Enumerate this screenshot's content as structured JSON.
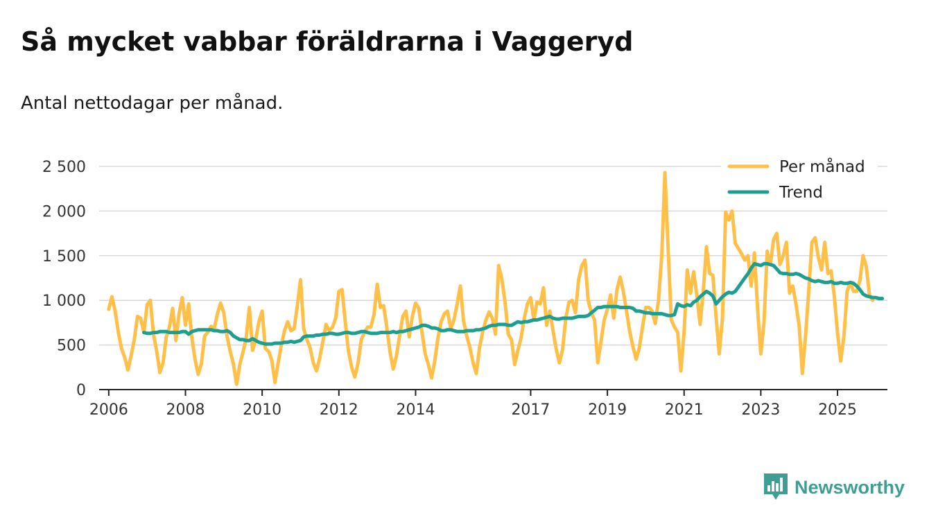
{
  "title": "Så mycket vabbar föräldrarna i Vaggeryd",
  "subtitle": "Antal nettodagar per månad.",
  "brand": {
    "name": "Newsworthy",
    "color": "#3f9e94",
    "icon": "newsworthy-logo-icon"
  },
  "chart_data": {
    "type": "line",
    "title": "Så mycket vabbar föräldrarna i Vaggeryd",
    "subtitle": "Antal nettodagar per månad.",
    "xlabel": "",
    "ylabel": "",
    "xlim": [
      2005.75,
      2026.3
    ],
    "ylim": [
      0,
      2500
    ],
    "yticks": [
      0,
      500,
      1000,
      1500,
      2000,
      2500
    ],
    "ytick_labels": [
      "0",
      "500",
      "1 000",
      "1 500",
      "2 000",
      "2 500"
    ],
    "xticks": [
      2006,
      2008,
      2010,
      2012,
      2014,
      2017,
      2019,
      2021,
      2023,
      2025
    ],
    "xtick_labels": [
      "2006",
      "2008",
      "2010",
      "2012",
      "2014",
      "2017",
      "2019",
      "2021",
      "2023",
      "2025"
    ],
    "grid": true,
    "legend": "top-right",
    "x_start": 2006,
    "x_step": 0.08333,
    "series": [
      {
        "name": "Per månad",
        "color": "#ffc04a",
        "start": 2006.0,
        "values": [
          900,
          1040,
          880,
          640,
          460,
          360,
          220,
          380,
          560,
          820,
          800,
          640,
          950,
          1000,
          620,
          430,
          190,
          300,
          590,
          700,
          910,
          550,
          850,
          1030,
          720,
          960,
          580,
          340,
          170,
          290,
          600,
          640,
          710,
          680,
          850,
          970,
          860,
          600,
          430,
          290,
          60,
          280,
          420,
          580,
          920,
          440,
          560,
          760,
          880,
          460,
          430,
          330,
          80,
          300,
          500,
          660,
          760,
          660,
          680,
          940,
          1230,
          680,
          560,
          470,
          300,
          210,
          350,
          540,
          730,
          660,
          700,
          800,
          1100,
          1120,
          760,
          430,
          250,
          140,
          300,
          560,
          640,
          700,
          700,
          840,
          1180,
          920,
          940,
          700,
          420,
          230,
          380,
          600,
          820,
          880,
          590,
          820,
          970,
          910,
          640,
          400,
          280,
          130,
          320,
          580,
          760,
          850,
          880,
          680,
          780,
          960,
          1160,
          770,
          600,
          470,
          300,
          180,
          470,
          650,
          780,
          870,
          800,
          620,
          1390,
          1240,
          980,
          620,
          560,
          280,
          440,
          580,
          800,
          960,
          1030,
          780,
          980,
          960,
          1140,
          720,
          880,
          660,
          450,
          300,
          450,
          800,
          980,
          1000,
          860,
          1230,
          1390,
          1450,
          1000,
          860,
          780,
          300,
          540,
          780,
          900,
          1060,
          800,
          1120,
          1260,
          1100,
          880,
          650,
          480,
          340,
          470,
          700,
          920,
          920,
          880,
          740,
          1000,
          1500,
          2430,
          1580,
          780,
          700,
          640,
          210,
          640,
          1340,
          1080,
          1320,
          1050,
          730,
          1100,
          1600,
          1300,
          1280,
          820,
          400,
          800,
          1990,
          1900,
          2000,
          1640,
          1580,
          1520,
          1450,
          1500,
          1160,
          1530,
          900,
          400,
          750,
          1550,
          1400,
          1680,
          1750,
          1400,
          1500,
          1650,
          1080,
          1160,
          960,
          720,
          180,
          600,
          1100,
          1650,
          1700,
          1480,
          1340,
          1650,
          1300,
          1330,
          1050,
          640,
          320,
          600,
          1100,
          1200,
          1100,
          1100,
          1220,
          1500,
          1380,
          1060,
          1000
        ]
      },
      {
        "name": "Trend",
        "color": "#1f9e8f",
        "start": 2006.917,
        "values": [
          640,
          630,
          630,
          640,
          640,
          650,
          650,
          650,
          640,
          640,
          640,
          640,
          650,
          650,
          620,
          650,
          660,
          670,
          670,
          670,
          670,
          670,
          660,
          660,
          650,
          650,
          660,
          640,
          600,
          580,
          560,
          560,
          550,
          550,
          570,
          550,
          530,
          520,
          510,
          510,
          510,
          520,
          520,
          520,
          530,
          530,
          540,
          530,
          540,
          550,
          590,
          600,
          600,
          600,
          610,
          610,
          620,
          620,
          630,
          630,
          620,
          620,
          630,
          640,
          640,
          630,
          630,
          640,
          650,
          650,
          640,
          630,
          630,
          630,
          640,
          640,
          640,
          640,
          650,
          640,
          650,
          650,
          660,
          670,
          680,
          690,
          700,
          720,
          720,
          710,
          690,
          690,
          680,
          660,
          660,
          670,
          670,
          660,
          650,
          650,
          650,
          660,
          660,
          660,
          670,
          670,
          680,
          690,
          710,
          720,
          720,
          730,
          730,
          730,
          720,
          720,
          740,
          760,
          750,
          760,
          760,
          770,
          780,
          780,
          790,
          800,
          810,
          820,
          800,
          790,
          790,
          800,
          800,
          800,
          800,
          810,
          820,
          820,
          820,
          830,
          860,
          890,
          920,
          920,
          930,
          930,
          930,
          930,
          930,
          920,
          920,
          920,
          920,
          910,
          880,
          880,
          870,
          860,
          860,
          850,
          850,
          850,
          850,
          840,
          830,
          830,
          840,
          960,
          940,
          930,
          950,
          940,
          980,
          1000,
          1040,
          1070,
          1100,
          1080,
          1050,
          960,
          1000,
          1040,
          1070,
          1090,
          1080,
          1100,
          1150,
          1200,
          1250,
          1300,
          1360,
          1410,
          1400,
          1390,
          1410,
          1410,
          1400,
          1390,
          1350,
          1310,
          1300,
          1300,
          1290,
          1290,
          1300,
          1290,
          1270,
          1250,
          1240,
          1220,
          1210,
          1220,
          1210,
          1200,
          1200,
          1210,
          1190,
          1190,
          1200,
          1190,
          1190,
          1200,
          1190,
          1160,
          1120,
          1070,
          1050,
          1040,
          1030,
          1030,
          1020,
          1020
        ]
      }
    ]
  }
}
